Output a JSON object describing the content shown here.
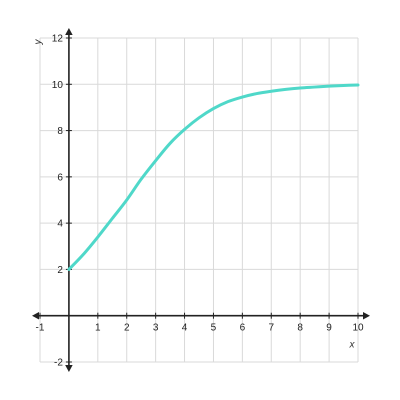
{
  "chart_data": {
    "type": "line",
    "title": "",
    "xlabel": "x",
    "ylabel": "y",
    "xlim": [
      -1,
      10
    ],
    "ylim": [
      -2,
      12
    ],
    "x_ticks": [
      -1,
      1,
      2,
      3,
      4,
      5,
      6,
      7,
      8,
      9,
      10
    ],
    "y_ticks": [
      -2,
      2,
      4,
      6,
      8,
      10,
      12
    ],
    "grid": true,
    "legend": "none",
    "series": [
      {
        "color": "#4fd8c9",
        "points": [
          [
            0,
            2.0
          ],
          [
            0.5,
            2.65
          ],
          [
            1,
            3.4
          ],
          [
            1.5,
            4.2
          ],
          [
            2,
            5.0
          ],
          [
            2.5,
            5.9
          ],
          [
            3,
            6.7
          ],
          [
            3.5,
            7.45
          ],
          [
            4,
            8.05
          ],
          [
            4.5,
            8.55
          ],
          [
            5,
            8.95
          ],
          [
            5.5,
            9.25
          ],
          [
            6,
            9.45
          ],
          [
            6.5,
            9.6
          ],
          [
            7,
            9.7
          ],
          [
            7.5,
            9.78
          ],
          [
            8,
            9.84
          ],
          [
            8.5,
            9.88
          ],
          [
            9,
            9.92
          ],
          [
            9.5,
            9.95
          ],
          [
            10,
            9.97
          ]
        ]
      }
    ]
  }
}
